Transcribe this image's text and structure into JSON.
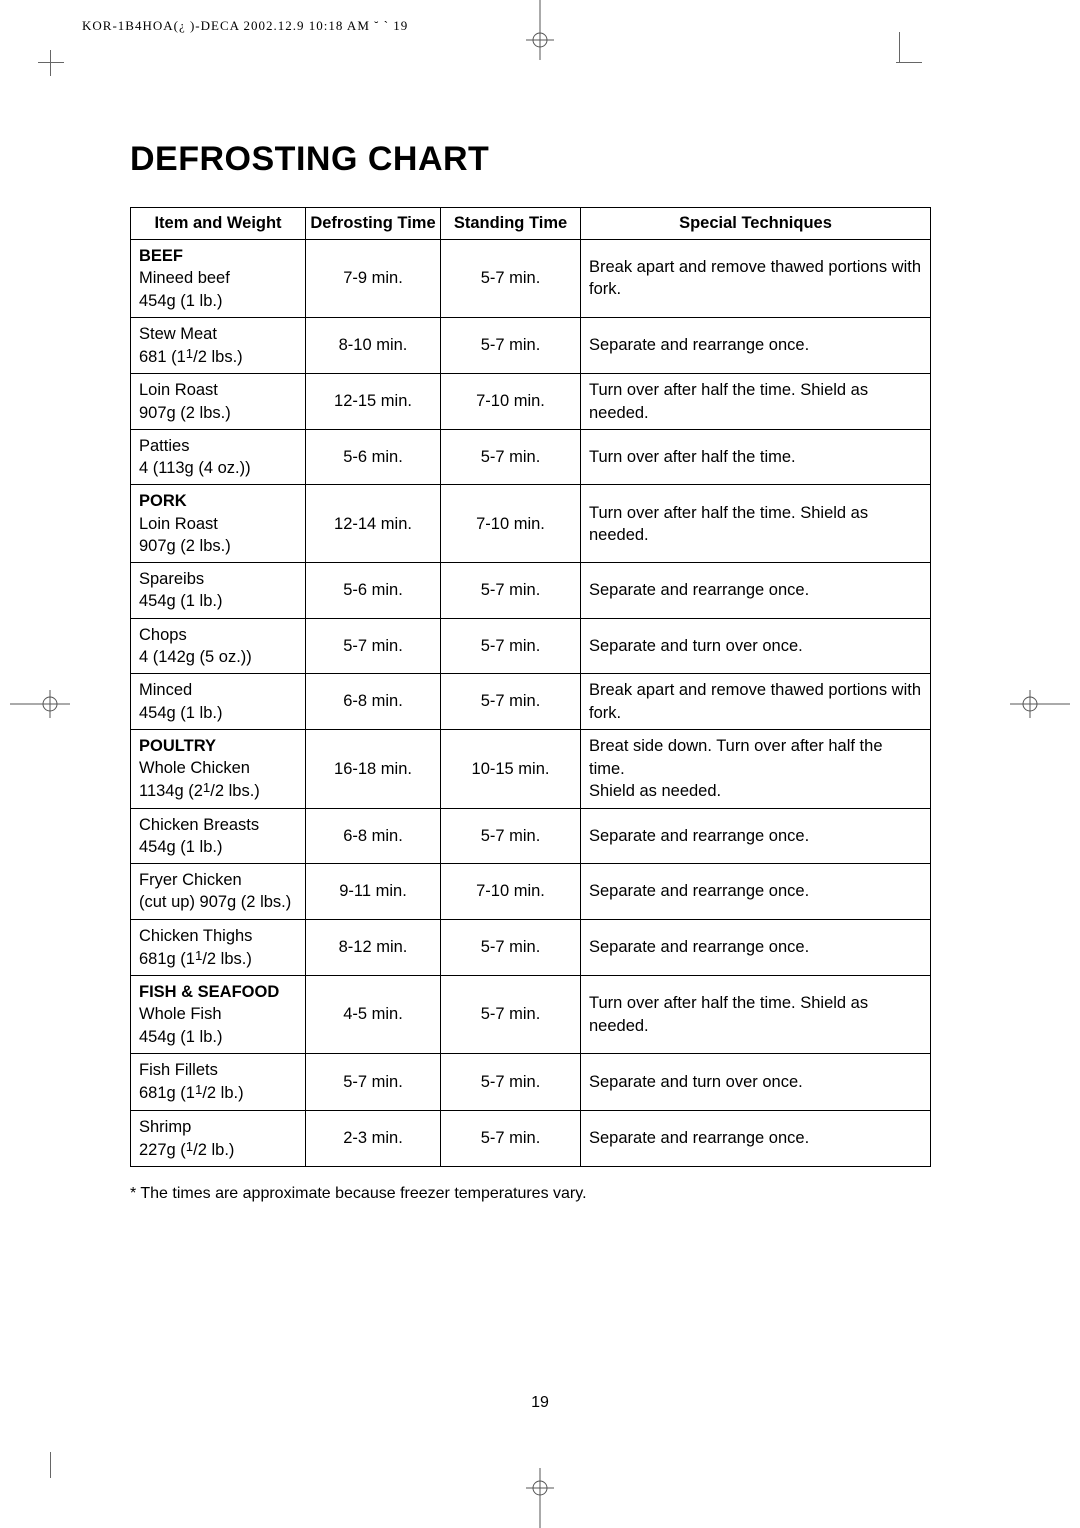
{
  "header_line": "KOR-1B4HOA(¿ )-DECA 2002.12.9 10:18 AM ˘ ` 19",
  "title": "DEFROSTING CHART",
  "columns": [
    "Item and Weight",
    "Defrosting Time",
    "Standing Time",
    "Special Techniques"
  ],
  "rows": [
    {
      "section": "BEEF",
      "item": "Mineed beef",
      "weight": "454g (1 lb.)",
      "defrost": "7-9 min.",
      "stand": "5-7 min.",
      "tech": "Break apart and remove thawed portions with fork."
    },
    {
      "item": "Stew Meat",
      "weight": "681 (1¹/2 lbs.)",
      "frac": true,
      "defrost": "8-10 min.",
      "stand": "5-7 min.",
      "tech": "Separate and rearrange once."
    },
    {
      "item": "Loin Roast",
      "weight": "907g (2 lbs.)",
      "defrost": "12-15 min.",
      "stand": "7-10 min.",
      "tech": "Turn over after half the time. Shield as needed."
    },
    {
      "item": "Patties",
      "weight": "4 (113g (4 oz.))",
      "defrost": "5-6 min.",
      "stand": "5-7 min.",
      "tech": "Turn over after half the time."
    },
    {
      "section": "PORK",
      "item": "Loin Roast",
      "weight": "907g (2 lbs.)",
      "defrost": "12-14 min.",
      "stand": "7-10 min.",
      "tech": "Turn over after half the time. Shield as needed."
    },
    {
      "item": "Spareibs",
      "weight": "454g (1 lb.)",
      "defrost": "5-6 min.",
      "stand": "5-7 min.",
      "tech": "Separate and rearrange once."
    },
    {
      "item": "Chops",
      "weight": "4 (142g (5 oz.))",
      "defrost": "5-7 min.",
      "stand": "5-7 min.",
      "tech": "Separate and turn over once."
    },
    {
      "item": "Minced",
      "weight": "454g (1 lb.)",
      "defrost": "6-8 min.",
      "stand": "5-7 min.",
      "tech": "Break apart and remove thawed portions with fork."
    },
    {
      "section": "POULTRY",
      "item": "Whole Chicken",
      "weight": "1134g (2¹/2 lbs.)",
      "frac": true,
      "defrost": "16-18 min.",
      "stand": "10-15 min.",
      "tech": "Breat side down. Turn over after half the time.\nShield as needed."
    },
    {
      "item": "Chicken Breasts",
      "weight": "454g (1 lb.)",
      "defrost": "6-8 min.",
      "stand": "5-7 min.",
      "tech": "Separate and rearrange once."
    },
    {
      "item": "Fryer Chicken",
      "weight": "(cut up) 907g (2 lbs.)",
      "defrost": "9-11 min.",
      "stand": "7-10 min.",
      "tech": "Separate and rearrange once."
    },
    {
      "item": "Chicken Thighs",
      "weight": "681g (1¹/2 lbs.)",
      "frac": true,
      "defrost": "8-12 min.",
      "stand": "5-7 min.",
      "tech": "Separate and rearrange once."
    },
    {
      "section": "FISH & SEAFOOD",
      "item": "Whole Fish",
      "weight": "454g (1 lb.)",
      "defrost": "4-5 min.",
      "stand": "5-7 min.",
      "tech": "Turn over after half the time. Shield as needed."
    },
    {
      "item": "Fish Fillets",
      "weight": "681g (1¹/2 lb.)",
      "frac": true,
      "defrost": "5-7 min.",
      "stand": "5-7 min.",
      "tech": "Separate and turn over once."
    },
    {
      "item": "Shrimp",
      "weight": "227g (¹/2 lb.)",
      "frac": true,
      "defrost": "2-3 min.",
      "stand": "5-7 min.",
      "tech": "Separate and rearrange once."
    }
  ],
  "footnote": "* The times are approximate because freezer temperatures vary.",
  "page_number": "19",
  "colors": {
    "border": "#000000",
    "text": "#000000",
    "background": "#ffffff"
  }
}
